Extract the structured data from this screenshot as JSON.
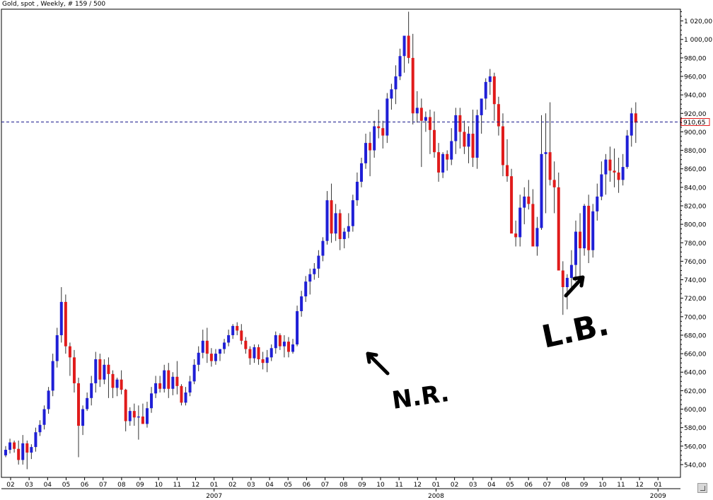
{
  "title": "Gold, spot , Weekly, # 159 / 500",
  "colors": {
    "up": "#1f1fd6",
    "down": "#e01b1b",
    "hline": "#1a1a8c",
    "grid": "#000000"
  },
  "annotations": {
    "nr_text": "N.R.",
    "lb_text": "L.B.",
    "nr_arrow": "arrow-up-left",
    "lb_arrow": "arrow-up-right"
  },
  "ui": {
    "scroll_handle_icon": "resize-handle-icon"
  },
  "chart_data": {
    "type": "candlestick",
    "title": "Gold, spot , Weekly, # 159 / 500",
    "ylim": [
      530,
      1035
    ],
    "yticks": [
      540,
      560,
      580,
      600,
      620,
      640,
      660,
      680,
      700,
      720,
      740,
      760,
      780,
      800,
      820,
      840,
      860,
      880,
      900,
      920,
      940,
      960,
      980,
      1000,
      1020
    ],
    "ytick_labels": [
      "540,00",
      "560,00",
      "580,00",
      "600,00",
      "620,00",
      "640,00",
      "660,00",
      "680,00",
      "700,00",
      "720,00",
      "740,00",
      "760,00",
      "780,00",
      "800,00",
      "820,00",
      "840,00",
      "860,00",
      "880,00",
      "900,00",
      "920,00",
      "940,00",
      "960,00",
      "980,00",
      "1 000,00",
      "1 020,00"
    ],
    "x_month_labels": [
      "02",
      "03",
      "04",
      "05",
      "06",
      "07",
      "08",
      "09",
      "10",
      "11",
      "12",
      "01",
      "02",
      "03",
      "04",
      "05",
      "06",
      "07",
      "08",
      "09",
      "10",
      "11",
      "12",
      "01",
      "02",
      "03",
      "04",
      "05",
      "06",
      "07",
      "08",
      "09",
      "10",
      "11",
      "12",
      "01"
    ],
    "year_labels": [
      {
        "label": "2007",
        "month_index": 11
      },
      {
        "label": "2008",
        "month_index": 23
      },
      {
        "label": "2009",
        "month_index": 35
      }
    ],
    "current_price": 910.65,
    "current_price_label": "910,65",
    "series": [
      {
        "values": [
          [
            550,
            560,
            548,
            556
          ],
          [
            556,
            568,
            552,
            564
          ],
          [
            564,
            566,
            553,
            557
          ],
          [
            557,
            566,
            540,
            545
          ],
          [
            545,
            572,
            540,
            563
          ],
          [
            563,
            566,
            535,
            553
          ],
          [
            553,
            562,
            546,
            559
          ],
          [
            559,
            580,
            554,
            575
          ],
          [
            575,
            588,
            571,
            583
          ],
          [
            583,
            604,
            578,
            600
          ],
          [
            600,
            624,
            595,
            620
          ],
          [
            620,
            660,
            614,
            652
          ],
          [
            652,
            688,
            645,
            680
          ],
          [
            680,
            732,
            672,
            716
          ],
          [
            716,
            724,
            660,
            668
          ],
          [
            668,
            672,
            636,
            656
          ],
          [
            656,
            664,
            618,
            628
          ],
          [
            628,
            634,
            548,
            582
          ],
          [
            582,
            604,
            572,
            600
          ],
          [
            600,
            618,
            598,
            612
          ],
          [
            612,
            636,
            604,
            628
          ],
          [
            628,
            662,
            618,
            654
          ],
          [
            654,
            660,
            624,
            632
          ],
          [
            632,
            654,
            627,
            648
          ],
          [
            648,
            656,
            612,
            638
          ],
          [
            638,
            642,
            612,
            623
          ],
          [
            623,
            634,
            614,
            632
          ],
          [
            632,
            642,
            616,
            621
          ],
          [
            621,
            622,
            576,
            587
          ],
          [
            587,
            602,
            582,
            598
          ],
          [
            598,
            606,
            582,
            591
          ],
          [
            591,
            604,
            567,
            592
          ],
          [
            592,
            606,
            584,
            584
          ],
          [
            584,
            608,
            580,
            601
          ],
          [
            601,
            624,
            596,
            617
          ],
          [
            617,
            636,
            612,
            628
          ],
          [
            628,
            636,
            618,
            622
          ],
          [
            622,
            648,
            618,
            642
          ],
          [
            642,
            650,
            612,
            622
          ],
          [
            622,
            640,
            615,
            635
          ],
          [
            635,
            652,
            616,
            625
          ],
          [
            625,
            627,
            604,
            607
          ],
          [
            607,
            624,
            604,
            618
          ],
          [
            618,
            636,
            614,
            630
          ],
          [
            630,
            654,
            627,
            648
          ],
          [
            648,
            668,
            641,
            661
          ],
          [
            661,
            686,
            655,
            674
          ],
          [
            674,
            688,
            650,
            660
          ],
          [
            660,
            666,
            646,
            652
          ],
          [
            652,
            665,
            648,
            660
          ],
          [
            660,
            664,
            652,
            665
          ],
          [
            665,
            676,
            660,
            672
          ],
          [
            672,
            686,
            668,
            680
          ],
          [
            680,
            692,
            676,
            690
          ],
          [
            690,
            694,
            680,
            685
          ],
          [
            685,
            692,
            670,
            674
          ],
          [
            674,
            678,
            660,
            665
          ],
          [
            665,
            668,
            648,
            655
          ],
          [
            655,
            670,
            650,
            667
          ],
          [
            667,
            670,
            648,
            654
          ],
          [
            654,
            662,
            643,
            650
          ],
          [
            650,
            664,
            640,
            656
          ],
          [
            656,
            670,
            652,
            666
          ],
          [
            666,
            684,
            660,
            680
          ],
          [
            680,
            682,
            664,
            668
          ],
          [
            668,
            680,
            656,
            673
          ],
          [
            673,
            678,
            656,
            662
          ],
          [
            662,
            676,
            660,
            670
          ],
          [
            670,
            712,
            668,
            706
          ],
          [
            706,
            728,
            700,
            722
          ],
          [
            722,
            744,
            716,
            738
          ],
          [
            738,
            752,
            724,
            746
          ],
          [
            746,
            758,
            740,
            752
          ],
          [
            752,
            772,
            742,
            766
          ],
          [
            766,
            786,
            760,
            782
          ],
          [
            782,
            836,
            778,
            826
          ],
          [
            826,
            844,
            780,
            790
          ],
          [
            790,
            822,
            782,
            812
          ],
          [
            812,
            816,
            772,
            784
          ],
          [
            784,
            796,
            774,
            792
          ],
          [
            792,
            812,
            785,
            798
          ],
          [
            798,
            832,
            792,
            826
          ],
          [
            826,
            856,
            820,
            846
          ],
          [
            846,
            872,
            840,
            866
          ],
          [
            866,
            898,
            860,
            888
          ],
          [
            888,
            900,
            852,
            880
          ],
          [
            880,
            912,
            872,
            906
          ],
          [
            906,
            924,
            893,
            904
          ],
          [
            904,
            912,
            882,
            896
          ],
          [
            896,
            942,
            888,
            936
          ],
          [
            936,
            952,
            924,
            946
          ],
          [
            946,
            972,
            930,
            960
          ],
          [
            960,
            990,
            956,
            982
          ],
          [
            982,
            996,
            964,
            1004
          ],
          [
            1004,
            1030,
            974,
            980
          ],
          [
            980,
            1006,
            908,
            920
          ],
          [
            920,
            944,
            910,
            926
          ],
          [
            926,
            936,
            862,
            912
          ],
          [
            912,
            922,
            900,
            916
          ],
          [
            916,
            924,
            876,
            902
          ],
          [
            902,
            922,
            872,
            878
          ],
          [
            878,
            888,
            846,
            856
          ],
          [
            856,
            878,
            850,
            876
          ],
          [
            876,
            880,
            858,
            870
          ],
          [
            870,
            904,
            864,
            890
          ],
          [
            890,
            926,
            876,
            918
          ],
          [
            918,
            926,
            882,
            900
          ],
          [
            900,
            912,
            876,
            884
          ],
          [
            884,
            906,
            866,
            898
          ],
          [
            898,
            924,
            862,
            872
          ],
          [
            872,
            924,
            860,
            918
          ],
          [
            918,
            930,
            898,
            936
          ],
          [
            936,
            958,
            924,
            954
          ],
          [
            954,
            968,
            940,
            960
          ],
          [
            960,
            964,
            912,
            930
          ],
          [
            930,
            938,
            896,
            906
          ],
          [
            906,
            920,
            852,
            864
          ],
          [
            864,
            892,
            846,
            852
          ],
          [
            852,
            860,
            800,
            790
          ],
          [
            790,
            804,
            776,
            786
          ],
          [
            786,
            832,
            776,
            818
          ],
          [
            818,
            840,
            800,
            830
          ],
          [
            830,
            848,
            816,
            822
          ],
          [
            822,
            838,
            780,
            776
          ],
          [
            776,
            808,
            766,
            796
          ],
          [
            796,
            918,
            794,
            876
          ],
          [
            876,
            920,
            812,
            878
          ],
          [
            878,
            932,
            842,
            848
          ],
          [
            848,
            868,
            812,
            840
          ],
          [
            840,
            856,
            752,
            750
          ],
          [
            750,
            760,
            702,
            732
          ],
          [
            732,
            746,
            708,
            742
          ],
          [
            742,
            772,
            728,
            756
          ],
          [
            756,
            804,
            738,
            792
          ],
          [
            792,
            812,
            738,
            774
          ],
          [
            774,
            822,
            766,
            820
          ],
          [
            820,
            832,
            758,
            772
          ],
          [
            772,
            822,
            764,
            814
          ],
          [
            814,
            844,
            804,
            830
          ],
          [
            830,
            868,
            826,
            854
          ],
          [
            854,
            876,
            832,
            870
          ],
          [
            870,
            884,
            846,
            858
          ],
          [
            858,
            882,
            840,
            856
          ],
          [
            856,
            872,
            834,
            848
          ],
          [
            848,
            876,
            842,
            862
          ],
          [
            862,
            902,
            860,
            896
          ],
          [
            896,
            926,
            884,
            920
          ],
          [
            920,
            932,
            888,
            910
          ]
        ]
      }
    ]
  }
}
